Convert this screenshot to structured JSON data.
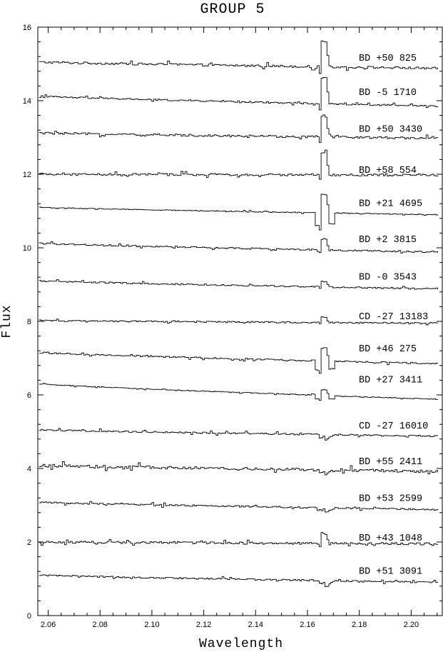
{
  "chart_data": {
    "type": "line",
    "title": "GROUP 5",
    "xlabel": "Wavelength",
    "ylabel": "Flux",
    "xlim": [
      2.056,
      2.212
    ],
    "ylim": [
      0,
      16
    ],
    "x_ticks": [
      2.06,
      2.08,
      2.1,
      2.12,
      2.14,
      2.16,
      2.18,
      2.2
    ],
    "x_tick_labels": [
      "2.06",
      "2.08",
      "2.10",
      "2.12",
      "2.14",
      "2.16",
      "2.18",
      "2.20"
    ],
    "y_ticks": [
      0,
      2,
      4,
      6,
      8,
      10,
      12,
      14,
      16
    ],
    "y_tick_labels": [
      "0",
      "2",
      "4",
      "6",
      "8",
      "10",
      "12",
      "14",
      "16"
    ],
    "series": [
      {
        "name": "BD +50 825",
        "baseline_start": 15.05,
        "baseline_end": 14.88,
        "feature": "emission",
        "feature_strength": 0.7,
        "noise": 0.03
      },
      {
        "name": "BD -5 1710",
        "baseline_start": 14.12,
        "baseline_end": 13.85,
        "feature": "emission",
        "feature_strength": 0.7,
        "noise": 0.02
      },
      {
        "name": "BD +50 3430",
        "baseline_start": 13.12,
        "baseline_end": 12.98,
        "feature": "emission",
        "feature_strength": 0.55,
        "noise": 0.03
      },
      {
        "name": "BD +58 554",
        "baseline_start": 12.0,
        "baseline_end": 11.98,
        "feature": "emission",
        "feature_strength": 0.6,
        "noise": 0.03
      },
      {
        "name": "BD +21 4695",
        "baseline_start": 11.1,
        "baseline_end": 10.9,
        "feature": "emission_absorption",
        "feature_strength": 0.5,
        "noise": 0.01
      },
      {
        "name": "BD +2 3815",
        "baseline_start": 10.12,
        "baseline_end": 9.88,
        "feature": "emission",
        "feature_strength": 0.3,
        "noise": 0.02
      },
      {
        "name": "BD -0 3543",
        "baseline_start": 9.1,
        "baseline_end": 8.88,
        "feature": "emission",
        "feature_strength": 0.15,
        "noise": 0.02
      },
      {
        "name": "CD -27 13183",
        "baseline_start": 8.02,
        "baseline_end": 7.95,
        "feature": "emission",
        "feature_strength": 0.15,
        "noise": 0.02
      },
      {
        "name": "BD +46 275",
        "baseline_start": 7.15,
        "baseline_end": 6.85,
        "feature": "emission_absorption",
        "feature_strength": 0.35,
        "noise": 0.02
      },
      {
        "name": "BD +27 3411",
        "baseline_start": 6.3,
        "baseline_end": 5.88,
        "feature": "emission_absorption",
        "feature_strength": 0.15,
        "noise": 0.01
      },
      {
        "name": "CD -27 16010",
        "baseline_start": 5.05,
        "baseline_end": 4.88,
        "feature": "absorption",
        "feature_strength": 0.15,
        "noise": 0.02
      },
      {
        "name": "BD +55 2411",
        "baseline_start": 4.08,
        "baseline_end": 3.92,
        "feature": "absorption",
        "feature_strength": 0.12,
        "noise": 0.04
      },
      {
        "name": "BD +53 2599",
        "baseline_start": 3.08,
        "baseline_end": 2.88,
        "feature": "absorption",
        "feature_strength": 0.12,
        "noise": 0.02
      },
      {
        "name": "BD +43 1048",
        "baseline_start": 2.0,
        "baseline_end": 1.95,
        "feature": "emission",
        "feature_strength": 0.25,
        "noise": 0.03
      },
      {
        "name": "BD +51 3091",
        "baseline_start": 1.1,
        "baseline_end": 0.9,
        "feature": "absorption",
        "feature_strength": 0.18,
        "noise": 0.02
      }
    ]
  }
}
